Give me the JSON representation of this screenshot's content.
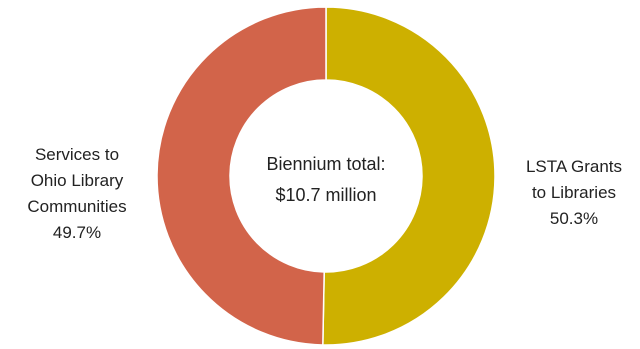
{
  "chart_data": {
    "type": "pie",
    "donut": true,
    "slices": [
      {
        "label_lines": [
          "LSTA Grants",
          "to Libraries"
        ],
        "value": 50.3,
        "percent_label": "50.3%",
        "color": "#cdb000"
      },
      {
        "label_lines": [
          "Services to",
          "Ohio Library",
          "Communities"
        ],
        "value": 49.7,
        "percent_label": "49.7%",
        "color": "#d2644a"
      }
    ],
    "center_text": [
      "Biennium total:",
      "$10.7 million"
    ],
    "start_angle_deg": 0,
    "direction": "clockwise",
    "legend": "none"
  }
}
